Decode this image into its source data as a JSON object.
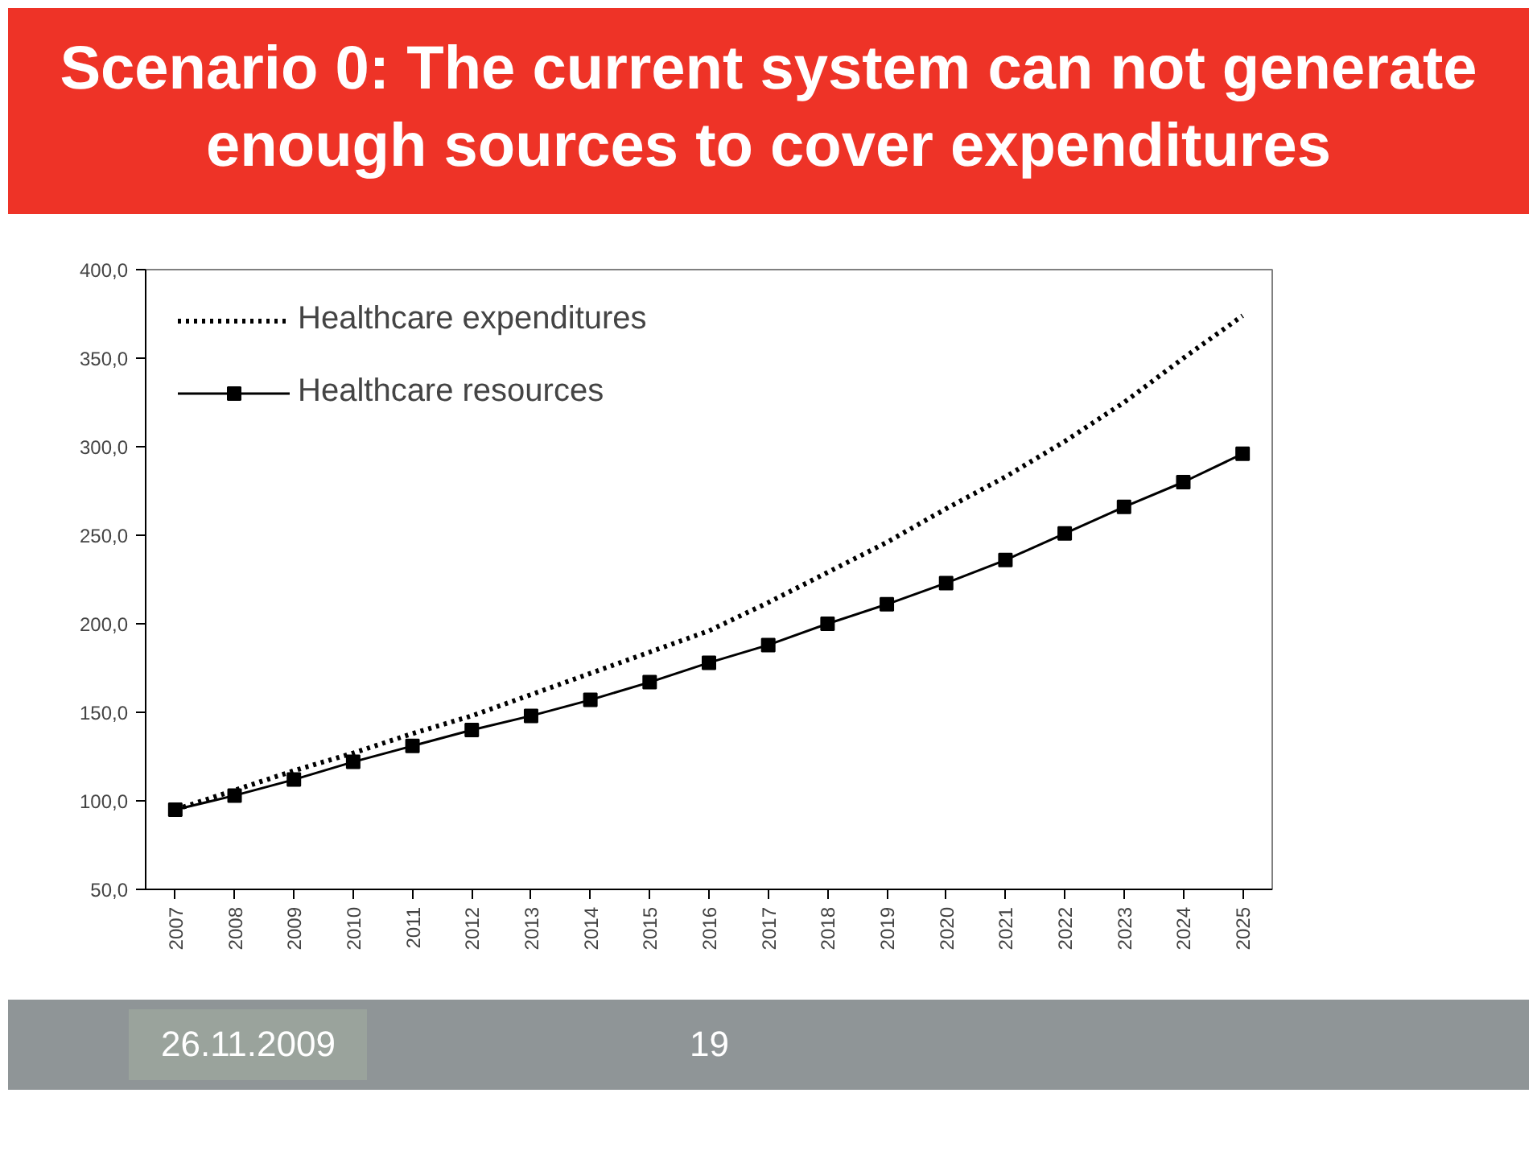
{
  "chart_data": {
    "type": "line",
    "title": "Scenario 0: The current system can not generate enough sources to cover expenditures",
    "categories": [
      "2007",
      "2008",
      "2009",
      "2010",
      "2011",
      "2012",
      "2013",
      "2014",
      "2015",
      "2016",
      "2017",
      "2018",
      "2019",
      "2020",
      "2021",
      "2022",
      "2023",
      "2024",
      "2025"
    ],
    "series": [
      {
        "name": "Healthcare expenditures",
        "color": "#000000",
        "line_style": "dotted",
        "marker": "none",
        "values": [
          95,
          106,
          117,
          127,
          138,
          148,
          160,
          172,
          184,
          196,
          212,
          229,
          246,
          265,
          283,
          303,
          325,
          350,
          374
        ]
      },
      {
        "name": "Healthcare resources",
        "color": "#000000",
        "line_style": "solid",
        "marker": "square",
        "values": [
          95,
          103,
          112,
          122,
          131,
          140,
          148,
          157,
          167,
          178,
          188,
          200,
          211,
          223,
          236,
          251,
          266,
          280,
          296
        ]
      }
    ],
    "ylim": [
      50,
      400
    ],
    "yticks": [
      {
        "value": 50,
        "label": "50,0"
      },
      {
        "value": 100,
        "label": "100,0"
      },
      {
        "value": 150,
        "label": "150,0"
      },
      {
        "value": 200,
        "label": "200,0"
      },
      {
        "value": 250,
        "label": "250,0"
      },
      {
        "value": 300,
        "label": "300,0"
      },
      {
        "value": 350,
        "label": "350,0"
      },
      {
        "value": 400,
        "label": "400,0"
      }
    ],
    "grid": false,
    "legend": "top left",
    "annotations": [
      "26.11.2009",
      "19"
    ]
  }
}
